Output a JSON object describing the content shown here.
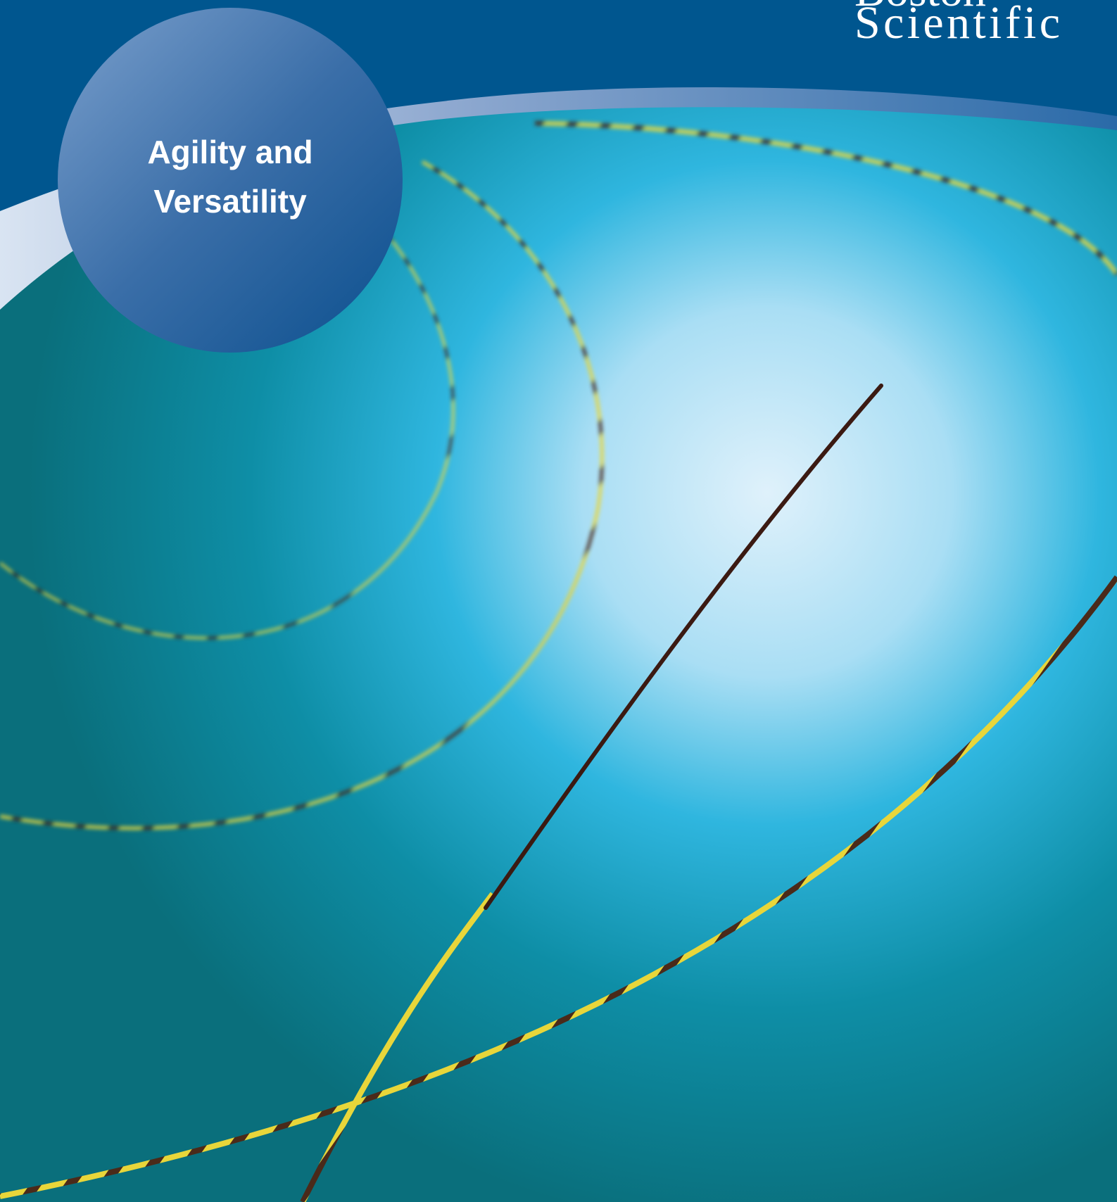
{
  "brand": {
    "line1": "Boston",
    "line2": "Scientific"
  },
  "badge": {
    "line1": "Agility and",
    "line2": "Versatility"
  }
}
